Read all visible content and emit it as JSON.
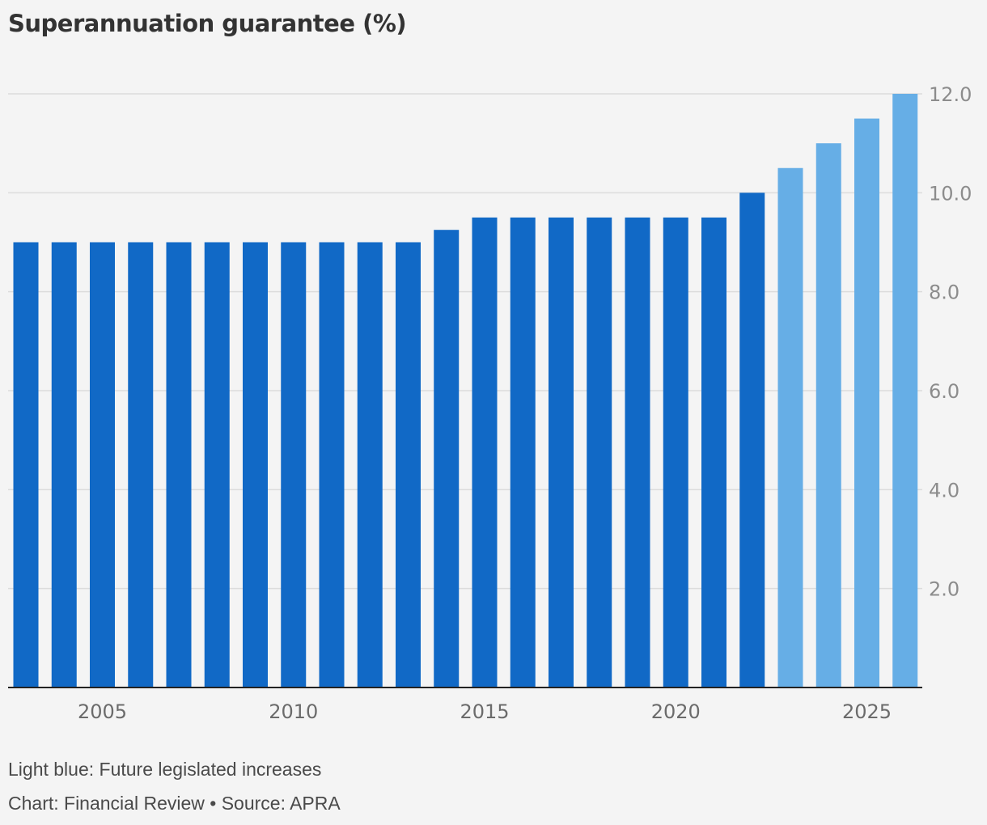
{
  "title": "Superannuation guarantee (%)",
  "notes": {
    "legend_note": "Light blue: Future legislated increases",
    "credit": "Chart: Financial Review • Source: APRA"
  },
  "colors": {
    "actual": "#1169c6",
    "future": "#66aee6",
    "grid": "#dcdcdc",
    "axis": "#222222",
    "background": "#f4f4f4"
  },
  "chart_data": {
    "type": "bar",
    "categories": [
      "2003",
      "2004",
      "2005",
      "2006",
      "2007",
      "2008",
      "2009",
      "2010",
      "2011",
      "2012",
      "2013",
      "2014",
      "2015",
      "2016",
      "2017",
      "2018",
      "2019",
      "2020",
      "2021",
      "2022",
      "2023",
      "2024",
      "2025",
      "2026"
    ],
    "values": [
      9,
      9,
      9,
      9,
      9,
      9,
      9,
      9,
      9,
      9,
      9,
      9.25,
      9.5,
      9.5,
      9.5,
      9.5,
      9.5,
      9.5,
      9.5,
      10,
      10.5,
      11,
      11.5,
      12
    ],
    "future": [
      false,
      false,
      false,
      false,
      false,
      false,
      false,
      false,
      false,
      false,
      false,
      false,
      false,
      false,
      false,
      false,
      false,
      false,
      false,
      false,
      true,
      true,
      true,
      true
    ],
    "ylim": [
      0,
      12
    ],
    "yticks": [
      2,
      4,
      6,
      8,
      10,
      12
    ],
    "ytick_labels": [
      "2.0",
      "4.0",
      "6.0",
      "8.0",
      "10.0",
      "12.0"
    ],
    "xticks": [
      "2005",
      "2010",
      "2015",
      "2020",
      "2025"
    ],
    "y_axis_position": "right",
    "grid": true
  }
}
